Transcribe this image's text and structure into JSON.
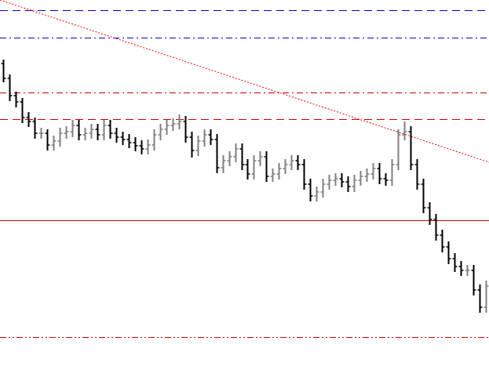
{
  "chart_data": {
    "type": "ohlc",
    "xlim": [
      -0.5,
      77.5
    ],
    "ylim": [
      0,
      481
    ],
    "up_color": "#808080",
    "down_color": "#000000",
    "open": [
      400,
      381,
      359,
      351,
      331,
      326,
      311,
      311,
      296,
      301,
      311,
      313,
      321,
      309,
      311,
      316,
      309,
      321,
      311,
      306,
      303,
      299,
      295,
      291,
      296,
      309,
      316,
      321,
      323,
      326,
      306,
      289,
      301,
      309,
      303,
      267,
      276,
      281,
      291,
      271,
      259,
      276,
      281,
      256,
      259,
      266,
      271,
      276,
      271,
      246,
      231,
      236,
      246,
      251,
      253,
      249,
      243,
      251,
      256,
      259,
      266,
      253,
      251,
      271,
      309,
      313,
      271,
      246,
      216,
      201,
      181,
      166,
      151,
      141,
      136,
      136,
      111,
      89
    ],
    "high": [
      405,
      386,
      364,
      356,
      338,
      331,
      318,
      316,
      308,
      318,
      320,
      328,
      328,
      318,
      323,
      323,
      328,
      328,
      318,
      313,
      310,
      306,
      302,
      303,
      316,
      323,
      328,
      330,
      335,
      333,
      313,
      308,
      316,
      316,
      310,
      283,
      288,
      298,
      298,
      278,
      283,
      288,
      288,
      266,
      273,
      278,
      283,
      283,
      278,
      253,
      243,
      253,
      258,
      260,
      260,
      256,
      258,
      263,
      266,
      273,
      273,
      260,
      278,
      316,
      326,
      320,
      278,
      253,
      223,
      208,
      188,
      173,
      158,
      148,
      143,
      143,
      118,
      123
    ],
    "low": [
      376,
      352,
      344,
      324,
      319,
      304,
      304,
      289,
      289,
      294,
      304,
      306,
      302,
      302,
      304,
      302,
      302,
      304,
      299,
      296,
      292,
      288,
      284,
      284,
      289,
      302,
      309,
      314,
      316,
      299,
      280,
      282,
      294,
      296,
      260,
      260,
      269,
      274,
      264,
      252,
      252,
      269,
      249,
      249,
      252,
      259,
      264,
      264,
      239,
      224,
      224,
      229,
      239,
      244,
      242,
      236,
      236,
      244,
      249,
      252,
      246,
      244,
      244,
      264,
      302,
      264,
      239,
      209,
      194,
      174,
      159,
      144,
      134,
      129,
      129,
      104,
      82,
      82
    ],
    "close": [
      381,
      359,
      351,
      331,
      326,
      311,
      311,
      296,
      301,
      311,
      313,
      321,
      309,
      311,
      316,
      309,
      321,
      311,
      306,
      303,
      299,
      295,
      291,
      296,
      309,
      316,
      321,
      323,
      326,
      306,
      289,
      301,
      309,
      303,
      267,
      276,
      281,
      291,
      271,
      259,
      276,
      281,
      256,
      259,
      266,
      271,
      276,
      271,
      246,
      231,
      236,
      246,
      251,
      253,
      249,
      243,
      251,
      256,
      259,
      266,
      253,
      251,
      271,
      309,
      313,
      271,
      246,
      216,
      201,
      181,
      166,
      151,
      141,
      136,
      136,
      111,
      89,
      116
    ],
    "hlines": [
      {
        "value": 468,
        "color": "#0000c8",
        "dash": "dash"
      },
      {
        "value": 433,
        "color": "#0000c8",
        "dash": "dashdot"
      },
      {
        "value": 363,
        "color": "#c80000",
        "dash": "dashdot"
      },
      {
        "value": 329,
        "color": "#c80000",
        "dash": "dash"
      },
      {
        "value": 200,
        "color": "#c80000",
        "dash": "solid"
      },
      {
        "value": 51,
        "color": "#c80000",
        "dash": "dashdotdot"
      }
    ],
    "trendlines": [
      {
        "x": [
          -0.5,
          77.5
        ],
        "y": [
          481,
          274
        ],
        "color": "#ff0000",
        "dash": "dot"
      }
    ]
  }
}
